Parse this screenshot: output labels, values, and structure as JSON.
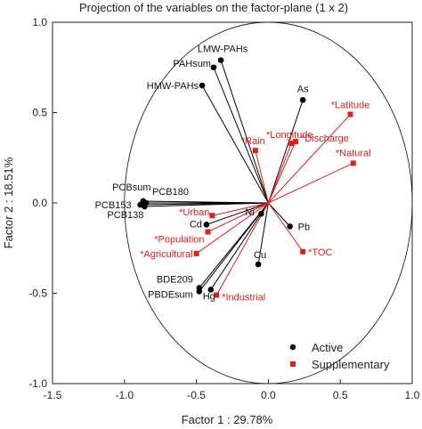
{
  "chart_data": {
    "type": "scatter",
    "title": "Projection of the variables on the factor-plane (1 x 2)",
    "xlabel": "Factor 1 : 29.78%",
    "ylabel": "Factor 2 : 18.51%",
    "xlim": [
      -1.5,
      1.0
    ],
    "ylim": [
      -1.0,
      1.0
    ],
    "xticks": [
      "-1.5",
      "-1.0",
      "-0.5",
      "0.0",
      "0.5",
      "1.0"
    ],
    "yticks": [
      "-1.0",
      "-0.5",
      "0.0",
      "0.5",
      "1.0"
    ],
    "grid": false,
    "legend_position": "bottom-right",
    "unit_circle": true,
    "series": [
      {
        "name": "Active",
        "color": "#000000",
        "marker": "circle",
        "points": [
          {
            "label": "LMW-PAHs",
            "x": -0.33,
            "y": 0.79
          },
          {
            "label": "PAHsum",
            "x": -0.38,
            "y": 0.75
          },
          {
            "label": "HMW-PAHs",
            "x": -0.46,
            "y": 0.65
          },
          {
            "label": "As",
            "x": 0.24,
            "y": 0.57
          },
          {
            "label": "PCBsum",
            "x": -0.87,
            "y": 0.01
          },
          {
            "label": "PCB180",
            "x": -0.85,
            "y": 0.0
          },
          {
            "label": "PCB153",
            "x": -0.89,
            "y": -0.01
          },
          {
            "label": "PCB138",
            "x": -0.86,
            "y": -0.02
          },
          {
            "label": "Ni",
            "x": -0.05,
            "y": -0.06
          },
          {
            "label": "Cd",
            "x": -0.43,
            "y": -0.12
          },
          {
            "label": "Pb",
            "x": 0.15,
            "y": -0.13
          },
          {
            "label": "Cu",
            "x": -0.07,
            "y": -0.34
          },
          {
            "label": "BDE209",
            "x": -0.48,
            "y": -0.47
          },
          {
            "label": "PBDEsum",
            "x": -0.48,
            "y": -0.49
          },
          {
            "label": "Hg",
            "x": -0.4,
            "y": -0.48
          }
        ]
      },
      {
        "name": "Supplementary",
        "color": "#e02020",
        "marker": "square",
        "points": [
          {
            "label": "*Latitude",
            "x": 0.57,
            "y": 0.49
          },
          {
            "label": "*Longitude",
            "x": 0.16,
            "y": 0.33
          },
          {
            "label": "*Discharge",
            "x": 0.19,
            "y": 0.34
          },
          {
            "label": "*Natural",
            "x": 0.59,
            "y": 0.22
          },
          {
            "label": "*Rain",
            "x": -0.09,
            "y": 0.29
          },
          {
            "label": "*Urban",
            "x": -0.39,
            "y": -0.07
          },
          {
            "label": "*Population",
            "x": -0.42,
            "y": -0.16
          },
          {
            "label": "*Agricultural",
            "x": -0.5,
            "y": -0.28
          },
          {
            "label": "*TOC",
            "x": 0.24,
            "y": -0.27
          },
          {
            "label": "*Industrial",
            "x": -0.36,
            "y": -0.51
          }
        ]
      }
    ]
  }
}
